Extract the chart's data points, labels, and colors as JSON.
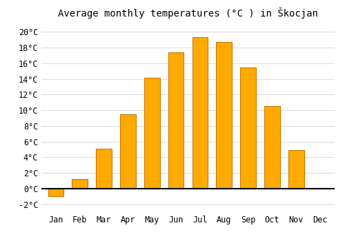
{
  "title": "Average monthly temperatures (°C ) in Škocjan",
  "months": [
    "Jan",
    "Feb",
    "Mar",
    "Apr",
    "May",
    "Jun",
    "Jul",
    "Aug",
    "Sep",
    "Oct",
    "Nov",
    "Dec"
  ],
  "values": [
    -1.0,
    1.2,
    5.1,
    9.5,
    14.1,
    17.4,
    19.3,
    18.7,
    15.5,
    10.5,
    4.9,
    0.1
  ],
  "bar_color": "#FFAA00",
  "bar_edge_color": "#CC7700",
  "background_color": "#ffffff",
  "grid_color": "#cccccc",
  "ylim": [
    -3,
    21
  ],
  "yticks": [
    -2,
    0,
    2,
    4,
    6,
    8,
    10,
    12,
    14,
    16,
    18,
    20
  ],
  "title_fontsize": 10,
  "tick_fontsize": 8.5,
  "bar_width": 0.65
}
